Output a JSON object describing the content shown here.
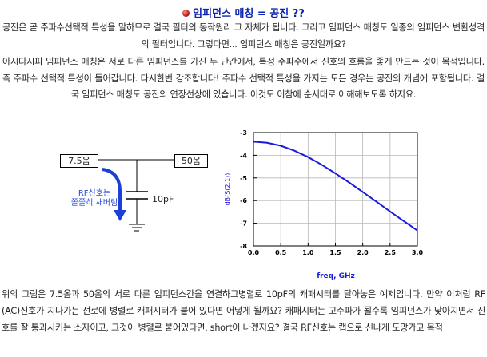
{
  "title": "임피던스 매칭 = 공진 ??",
  "paragraphs": {
    "p1": "공진은 곧 주파수선택적 특성을 말하므로 결국 필터의 동작원리 그 자체가 됩니다. 그리고 임피던스 매칭도 일종의 임피던스 변환성격의 필터입니다. 그렇다면... 임피던스 매칭은 공진일까요?",
    "p2": "아시다시피 임피던스 매칭은 서로 다른 임피던스를 가진 두 단간에서, 특정 주파수에서 신호의 흐름을 좋게 만드는 것이 목적입니다. 즉 주파수 선택적 특성이 들어갑니다. 다시한번 강조합니다! 주파수 선택적 특성을 가지는 모든 경우는 공진의 개념에 포함됩니다. 결국 임피던스 매칭도 공진의 연장선상에 있습니다. 이것도 이참에 순서대로 이해해보도록 하지요.",
    "p3": "위의 그림은 7.5옴과 50옴의 서로 다른 임피던스간을 연결하고병렬로 10pF의 캐패시터를 달아놓은 예제입니다. 만약 이처럼 RF (AC)신호가 지나가는 선로에 병렬로 캐패시터가 붙어 있다면 어떻게 될까요? 캐패시터는 고주파가 될수록 임피던스가 낮아지면서 신호를 잘 통과시키는 소자이고, 그것이 병렬로 붙어있다면, short이 나겠지요? 결국 RF신호는 캡으로 신나게 도망가고 목적"
  },
  "circuit": {
    "left_label": "7.5옴",
    "right_label": "50옴",
    "cap_label": "10pF",
    "rf_line1": "RF신호는",
    "rf_line2": "쫄쫄히 새버림"
  },
  "chart_data": {
    "type": "line",
    "xlabel": "freq, GHz",
    "ylabel": "dB(S(2,1))",
    "xlim": [
      0.0,
      3.0
    ],
    "ylim": [
      -8,
      -3
    ],
    "xticks": [
      "0.0",
      "0.5",
      "1.0",
      "1.5",
      "2.0",
      "2.5",
      "3.0"
    ],
    "yticks": [
      "-3",
      "-4",
      "-5",
      "-6",
      "-7",
      "-8"
    ],
    "grid": true,
    "series": [
      {
        "color": "#1a1adc",
        "x": [
          0.0,
          0.25,
          0.5,
          0.75,
          1.0,
          1.25,
          1.5,
          1.75,
          2.0,
          2.25,
          2.5,
          2.75,
          3.0
        ],
        "y": [
          -3.4,
          -3.45,
          -3.58,
          -3.8,
          -4.08,
          -4.42,
          -4.8,
          -5.2,
          -5.62,
          -6.05,
          -6.48,
          -6.9,
          -7.32
        ]
      }
    ]
  }
}
